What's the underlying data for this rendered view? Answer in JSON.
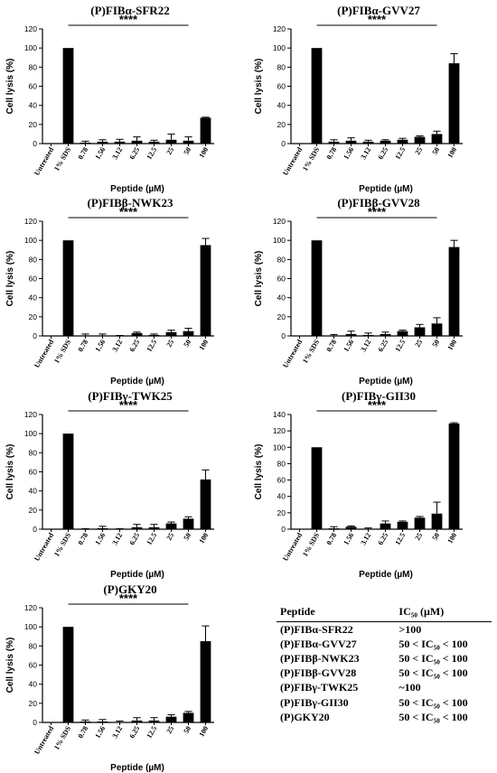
{
  "chart_data": [
    {
      "type": "bar",
      "title": "(P)FIBα-SFR22",
      "categories": [
        "Untreated",
        "1% SDS",
        "0.78",
        "1.56",
        "3.12",
        "6.25",
        "12.5",
        "25",
        "50",
        "100"
      ],
      "values": [
        0,
        100,
        1,
        2,
        2,
        3,
        2,
        4,
        3,
        27
      ],
      "errors": [
        0,
        0,
        1.5,
        2,
        2.5,
        4,
        1.5,
        6,
        4,
        0.6
      ],
      "xlabel": "Peptide (µM)",
      "ylabel": "Cell lysis (%)",
      "ylim": [
        0,
        120
      ],
      "yticks": [
        0,
        20,
        40,
        60,
        80,
        100,
        120
      ],
      "significance": "****"
    },
    {
      "type": "bar",
      "title": "(P)FIBα-GVV27",
      "categories": [
        "Untreated",
        "1% SDS",
        "0.78",
        "1.56",
        "3.12",
        "6.25",
        "12.5",
        "25",
        "50",
        "100"
      ],
      "values": [
        0,
        100,
        2,
        3,
        2,
        3,
        4,
        7,
        10,
        84
      ],
      "errors": [
        0,
        0,
        2,
        3,
        1.5,
        1,
        1.5,
        1,
        3,
        10
      ],
      "xlabel": "Peptide (µM)",
      "ylabel": "Cell lysis (%)",
      "ylim": [
        0,
        120
      ],
      "yticks": [
        0,
        20,
        40,
        60,
        80,
        100,
        120
      ],
      "significance": "****"
    },
    {
      "type": "bar",
      "title": "(P)FIBβ-NWK23",
      "categories": [
        "Untreated",
        "1% SDS",
        "0.78",
        "1.56",
        "3.12",
        "6.25",
        "12.5",
        "25",
        "50",
        "100"
      ],
      "values": [
        0,
        100,
        0.5,
        0.5,
        0,
        3,
        1,
        4,
        5,
        95
      ],
      "errors": [
        0,
        0,
        1.5,
        1.5,
        0.5,
        1,
        1,
        2,
        3,
        7
      ],
      "xlabel": "Peptide (µM)",
      "ylabel": "Cell lysis (%)",
      "ylim": [
        0,
        120
      ],
      "yticks": [
        0,
        20,
        40,
        60,
        80,
        100,
        120
      ],
      "significance": "****"
    },
    {
      "type": "bar",
      "title": "(P)FIBβ-GVV28",
      "categories": [
        "Untreated",
        "1% SDS",
        "0.78",
        "1.56",
        "3.12",
        "6.25",
        "12.5",
        "25",
        "50",
        "100"
      ],
      "values": [
        0,
        100,
        0.5,
        2,
        1,
        2,
        5,
        9,
        13,
        93
      ],
      "errors": [
        0,
        0,
        1,
        3,
        2,
        2,
        1,
        3,
        6,
        7
      ],
      "xlabel": "Peptide (µM)",
      "ylabel": "Cell lysis (%)",
      "ylim": [
        0,
        120
      ],
      "yticks": [
        0,
        20,
        40,
        60,
        80,
        100,
        120
      ],
      "significance": "****"
    },
    {
      "type": "bar",
      "title": "(P)FIBγ-TWK25",
      "categories": [
        "Untreated",
        "1% SDS",
        "0.78",
        "1.56",
        "3.12",
        "6.25",
        "12.5",
        "25",
        "50",
        "100"
      ],
      "values": [
        0,
        100,
        0,
        1,
        0,
        2,
        2,
        6,
        11,
        52
      ],
      "errors": [
        0,
        0,
        0.5,
        2,
        0.5,
        3,
        3,
        1.5,
        2,
        10
      ],
      "xlabel": "Peptide (µM)",
      "ylabel": "Cell lysis (%)",
      "ylim": [
        0,
        120
      ],
      "yticks": [
        0,
        20,
        40,
        60,
        80,
        100,
        120
      ],
      "significance": "****"
    },
    {
      "type": "bar",
      "title": "(P)FIBγ-GII30",
      "categories": [
        "Untreated",
        "1% SDS",
        "0.78",
        "1.56",
        "3.12",
        "6.25",
        "12.5",
        "25",
        "50",
        "100"
      ],
      "values": [
        0,
        100,
        1,
        3,
        0,
        7,
        9,
        14,
        19,
        129
      ],
      "errors": [
        0,
        0,
        2,
        1,
        1.5,
        3,
        1,
        1.5,
        14,
        1
      ],
      "xlabel": "Peptide (µM)",
      "ylabel": "Cell lysis (%)",
      "ylim": [
        0,
        140
      ],
      "yticks": [
        0,
        20,
        40,
        60,
        80,
        100,
        120,
        140
      ],
      "significance": "****"
    },
    {
      "type": "bar",
      "title": "(P)GKY20",
      "categories": [
        "Untreated",
        "1% SDS",
        "0.78",
        "1.56",
        "3.12",
        "6.25",
        "12.5",
        "25",
        "50",
        "100"
      ],
      "values": [
        0,
        100,
        1,
        1,
        0.5,
        2,
        2,
        6,
        10,
        85
      ],
      "errors": [
        0,
        0,
        1.5,
        2,
        1,
        3,
        3,
        2,
        1.5,
        16
      ],
      "xlabel": "Peptide (µM)",
      "ylabel": "Cell lysis (%)",
      "ylim": [
        0,
        120
      ],
      "yticks": [
        0,
        20,
        40,
        60,
        80,
        100,
        120
      ],
      "significance": "****"
    }
  ],
  "ic50_table": {
    "headers": [
      "Peptide",
      "IC₅₀ (µM)"
    ],
    "rows": [
      [
        "(P)FIBα-SFR22",
        ">100"
      ],
      [
        "(P)FIBα-GVV27",
        "50 < IC₅₀ < 100"
      ],
      [
        "(P)FIBβ-NWK23",
        "50 < IC₅₀ < 100"
      ],
      [
        "(P)FIBβ-GVV28",
        "50 < IC₅₀ < 100"
      ],
      [
        "(P)FIBγ-TWK25",
        "~100"
      ],
      [
        "(P)FIBγ-GII30",
        "50 < IC₅₀ < 100"
      ],
      [
        "(P)GKY20",
        "50 < IC₅₀ < 100"
      ]
    ]
  }
}
